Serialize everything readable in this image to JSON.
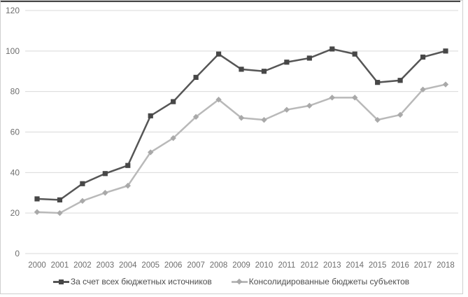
{
  "figure": {
    "title": "",
    "background": "#ffffff",
    "border_color": "#cfcfcf",
    "top_edge_color": "#474747"
  },
  "chart_data": {
    "type": "line",
    "title": "",
    "xlabel": "",
    "ylabel": "",
    "x": [
      2000,
      2001,
      2002,
      2003,
      2004,
      2005,
      2006,
      2007,
      2008,
      2009,
      2010,
      2011,
      2012,
      2013,
      2014,
      2015,
      2016,
      2017,
      2018
    ],
    "series": [
      {
        "key": "all-budget-sources",
        "name": "За счет всех бюджетных источников",
        "marker": "square",
        "color": "#565656",
        "marker_color": "#474747",
        "values": [
          27,
          26.5,
          34.5,
          39.5,
          43.5,
          68,
          75,
          87,
          98.5,
          91,
          90,
          94.5,
          96.5,
          101,
          98.5,
          84.5,
          85.5,
          97,
          100
        ]
      },
      {
        "key": "consolidated-budgets",
        "name": "Консолидированные бюджеты субъектов",
        "marker": "diamond",
        "color": "#b9b9b9",
        "marker_color": "#a9a9a9",
        "values": [
          20.5,
          20,
          26,
          30,
          33.5,
          50,
          57,
          67.5,
          76,
          67,
          66,
          71,
          73,
          77,
          77,
          66,
          68.5,
          81,
          83.5
        ]
      }
    ],
    "ylim": [
      0,
      120
    ],
    "yticks": [
      0,
      20,
      40,
      60,
      80,
      100,
      120
    ],
    "grid": "horizontal",
    "legend_position": "bottom",
    "colors": {
      "gridline": "#d9d9d9",
      "axis_text": "#6e6e6e",
      "legend_text": "#4d4d4d"
    }
  }
}
